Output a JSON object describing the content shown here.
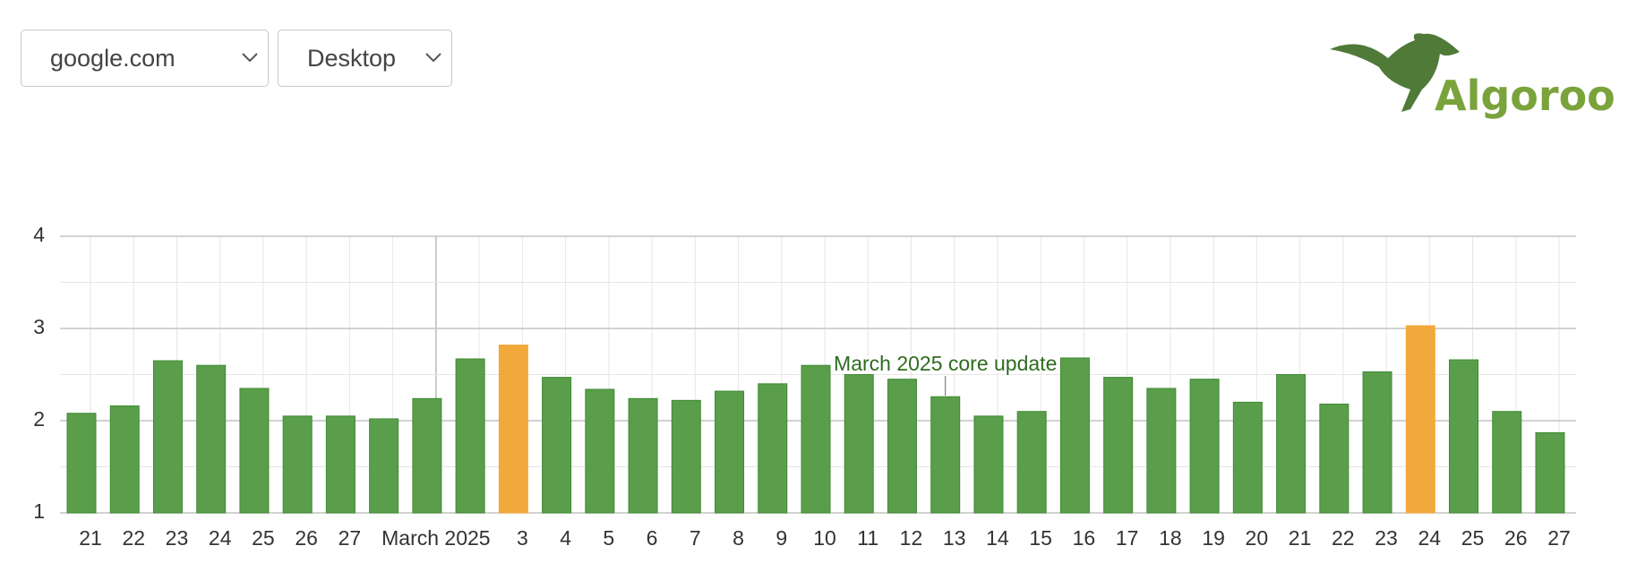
{
  "controls": {
    "site": "google.com",
    "device": "Desktop"
  },
  "logo": {
    "text": "Algoroo"
  },
  "chart_data": {
    "type": "bar",
    "categories": [
      "21",
      "22",
      "23",
      "24",
      "25",
      "26",
      "27",
      null,
      "March 2025",
      null,
      "3",
      "4",
      "5",
      "6",
      "7",
      "8",
      "9",
      "10",
      "11",
      "12",
      "13",
      "14",
      "15",
      "16",
      "17",
      "18",
      "19",
      "20",
      "21",
      "22",
      "23",
      "24",
      "25",
      "26",
      "27"
    ],
    "values": [
      2.08,
      2.16,
      2.65,
      2.6,
      2.35,
      2.05,
      2.05,
      2.02,
      2.24,
      2.67,
      2.82,
      2.47,
      2.34,
      2.24,
      2.22,
      2.32,
      2.4,
      2.6,
      2.5,
      2.45,
      2.26,
      2.05,
      2.1,
      2.68,
      2.47,
      2.35,
      2.45,
      2.2,
      2.5,
      2.18,
      2.53,
      3.03,
      2.66,
      2.1,
      1.87
    ],
    "colors": [
      "#5a9e4b",
      "#5a9e4b",
      "#5a9e4b",
      "#5a9e4b",
      "#5a9e4b",
      "#5a9e4b",
      "#5a9e4b",
      "#5a9e4b",
      "#5a9e4b",
      "#5a9e4b",
      "#f2a93b",
      "#5a9e4b",
      "#5a9e4b",
      "#5a9e4b",
      "#5a9e4b",
      "#5a9e4b",
      "#5a9e4b",
      "#5a9e4b",
      "#5a9e4b",
      "#5a9e4b",
      "#5a9e4b",
      "#5a9e4b",
      "#5a9e4b",
      "#5a9e4b",
      "#5a9e4b",
      "#5a9e4b",
      "#5a9e4b",
      "#5a9e4b",
      "#5a9e4b",
      "#5a9e4b",
      "#5a9e4b",
      "#f2a93b",
      "#5a9e4b",
      "#5a9e4b",
      "#5a9e4b"
    ],
    "ylim": [
      1,
      4
    ],
    "yticks": [
      1,
      2,
      3,
      4
    ],
    "grid": true,
    "annotation": {
      "text": "March 2025 core update",
      "category": "13"
    }
  }
}
